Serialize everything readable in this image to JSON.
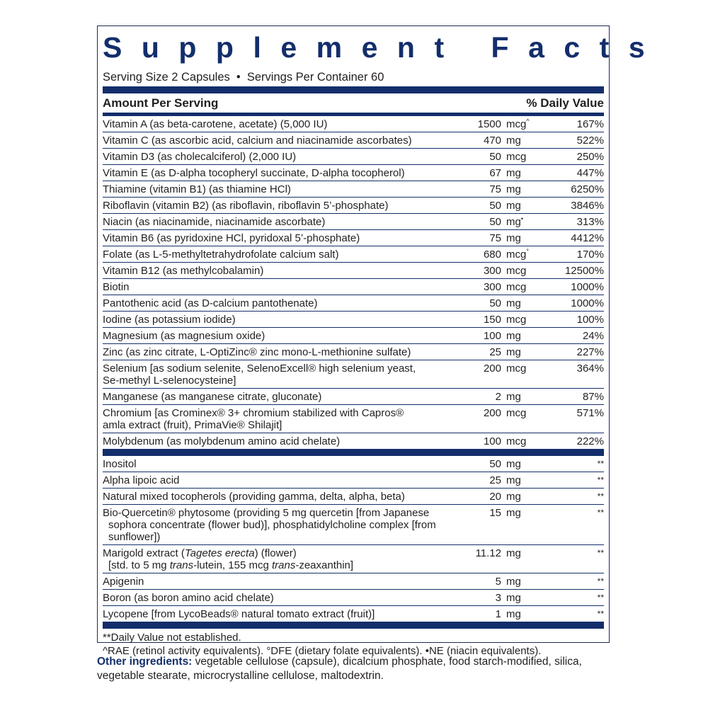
{
  "title": "Supplement Facts",
  "serving": "Serving Size 2 Capsules  •  Servings Per Container 60",
  "header": {
    "left": "Amount Per Serving",
    "right": "% Daily Value"
  },
  "colors": {
    "navy": "#132e6b",
    "text": "#231f20"
  },
  "section1": [
    {
      "lines": [
        "Vitamin A (as beta-carotene, acetate) (5,000 IU)"
      ],
      "amount": "1500",
      "unit": "mcg",
      "mark": "^",
      "dv": "167%"
    },
    {
      "lines": [
        "Vitamin C (as ascorbic acid, calcium and niacinamide ascorbates)"
      ],
      "amount": "470",
      "unit": "mg",
      "dv": "522%"
    },
    {
      "lines": [
        "Vitamin D3 (as cholecalciferol) (2,000 IU)"
      ],
      "amount": "50",
      "unit": "mcg",
      "dv": "250%"
    },
    {
      "lines": [
        "Vitamin E (as D-alpha tocopheryl succinate, D-alpha tocopherol)"
      ],
      "amount": "67",
      "unit": "mg",
      "dv": "447%"
    },
    {
      "lines": [
        "Thiamine (vitamin B1) (as thiamine HCl)"
      ],
      "amount": "75",
      "unit": "mg",
      "dv": "6250%"
    },
    {
      "lines": [
        "Riboflavin (vitamin B2) (as riboflavin, riboflavin 5’-phosphate)"
      ],
      "amount": "50",
      "unit": "mg",
      "dv": "3846%"
    },
    {
      "lines": [
        "Niacin (as niacinamide, niacinamide ascorbate)"
      ],
      "amount": "50",
      "unit": "mg",
      "mark": "•",
      "dv": "313%"
    },
    {
      "lines": [
        "Vitamin B6 (as pyridoxine HCl, pyridoxal 5’-phosphate)"
      ],
      "amount": "75",
      "unit": "mg",
      "dv": "4412%"
    },
    {
      "lines": [
        "Folate (as L-5-methyltetrahydrofolate calcium salt)"
      ],
      "amount": "680",
      "unit": "mcg",
      "mark": "°",
      "dv": "170%"
    },
    {
      "lines": [
        "Vitamin B12 (as methylcobalamin)"
      ],
      "amount": "300",
      "unit": "mcg",
      "dv": "12500%"
    },
    {
      "lines": [
        "Biotin"
      ],
      "amount": "300",
      "unit": "mcg",
      "dv": "1000%"
    },
    {
      "lines": [
        "Pantothenic acid (as D-calcium pantothenate)"
      ],
      "amount": "50",
      "unit": "mg",
      "dv": "1000%"
    },
    {
      "lines": [
        "Iodine (as potassium iodide)"
      ],
      "amount": "150",
      "unit": "mcg",
      "dv": "100%"
    },
    {
      "lines": [
        "Magnesium (as magnesium oxide)"
      ],
      "amount": "100",
      "unit": "mg",
      "dv": "24%"
    },
    {
      "lines": [
        "Zinc (as zinc citrate, L-OptiZinc® zinc mono-L-methionine sulfate)"
      ],
      "amount": "25",
      "unit": "mg",
      "dv": "227%"
    },
    {
      "lines": [
        "Selenium [as sodium selenite, SelenoExcell® high selenium yeast,",
        "Se-methyl L-selenocysteine]"
      ],
      "amount": "200",
      "unit": "mcg",
      "dv": "364%"
    },
    {
      "lines": [
        "Manganese (as manganese citrate, gluconate)"
      ],
      "amount": "2",
      "unit": "mg",
      "dv": "87%"
    },
    {
      "lines": [
        "Chromium [as Crominex® 3+ chromium stabilized with Capros®",
        "amla extract (fruit), PrimaVie® Shilajit]"
      ],
      "amount": "200",
      "unit": "mcg",
      "dv": "571%"
    },
    {
      "lines": [
        "Molybdenum (as molybdenum amino acid chelate)"
      ],
      "amount": "100",
      "unit": "mcg",
      "dv": "222%"
    }
  ],
  "section2": [
    {
      "lines": [
        "Inositol"
      ],
      "amount": "50",
      "unit": "mg",
      "dv": "**"
    },
    {
      "lines": [
        "Alpha lipoic acid"
      ],
      "amount": "25",
      "unit": "mg",
      "dv": "**"
    },
    {
      "lines": [
        "Natural mixed tocopherols (providing gamma, delta, alpha, beta)"
      ],
      "amount": "20",
      "unit": "mg",
      "dv": "**"
    },
    {
      "lines": [
        "Bio-Quercetin® phytosome (providing 5 mg quercetin [from Japanese",
        "sophora concentrate (flower bud)], phosphatidylcholine complex [from sunflower])"
      ],
      "indent": true,
      "amount": "15",
      "unit": "mg",
      "dv": "**"
    },
    {
      "lines": [
        [
          {
            "t": "Marigold extract ("
          },
          {
            "t": "Tagetes erecta",
            "i": true
          },
          {
            "t": ") (flower)"
          }
        ],
        [
          {
            "t": "[std. to 5 mg "
          },
          {
            "t": "trans",
            "i": true
          },
          {
            "t": "-lutein, 155 mcg "
          },
          {
            "t": "trans",
            "i": true
          },
          {
            "t": "-zeaxanthin]"
          }
        ]
      ],
      "indent": true,
      "amount": "11.12",
      "unit": "mg",
      "dv": "**"
    },
    {
      "lines": [
        "Apigenin"
      ],
      "amount": "5",
      "unit": "mg",
      "dv": "**"
    },
    {
      "lines": [
        "Boron (as boron amino acid chelate)"
      ],
      "amount": "3",
      "unit": "mg",
      "dv": "**"
    },
    {
      "lines": [
        "Lycopene [from LycoBeads® natural tomato extract (fruit)]"
      ],
      "amount": "1",
      "unit": "mg",
      "dv": "**"
    }
  ],
  "footnotes": [
    "**Daily Value not established.",
    "^RAE (retinol activity equivalents). °DFE (dietary folate equivalents). •NE (niacin equivalents)."
  ],
  "other": {
    "label": "Other ingredients:",
    "text": " vegetable cellulose (capsule), dicalcium phosphate, food starch-modified, silica, vegetable stearate, microcrystalline cellulose, maltodextrin."
  }
}
